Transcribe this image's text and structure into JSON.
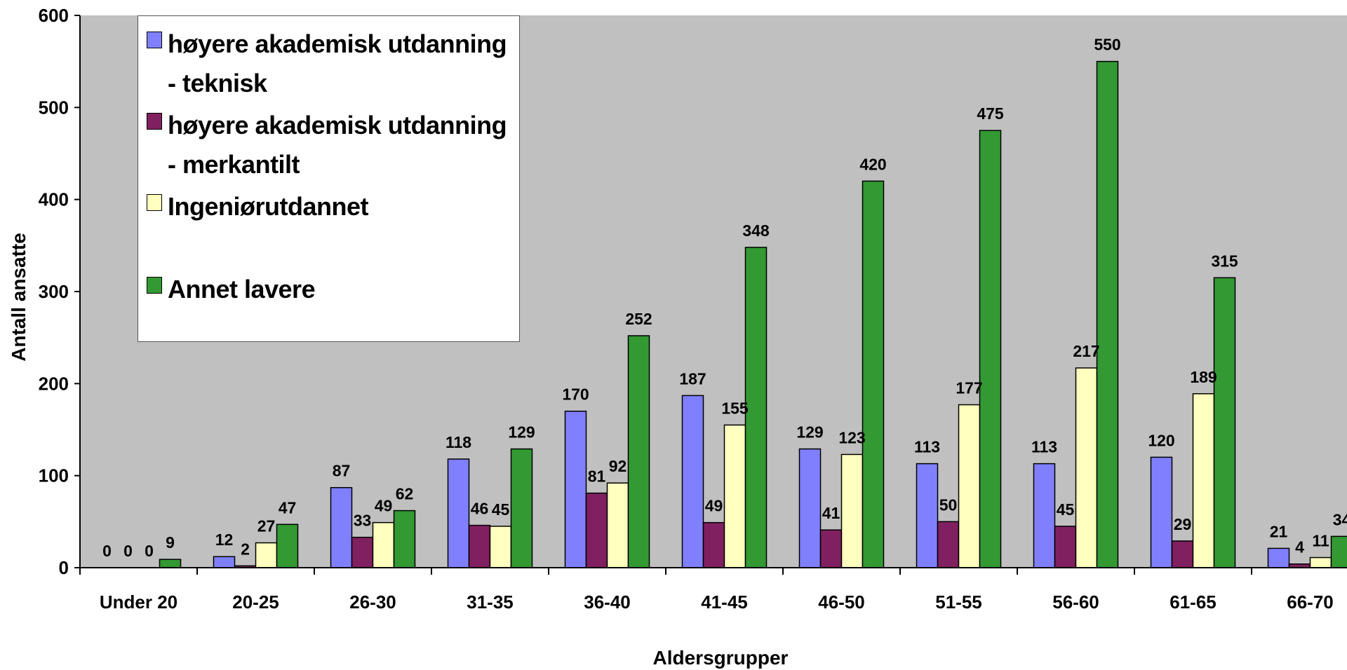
{
  "chart_data": {
    "type": "bar",
    "xlabel": "Aldersgrupper",
    "ylabel": "Antall ansatte",
    "ylim": [
      0,
      600
    ],
    "yticks": [
      0,
      100,
      200,
      300,
      400,
      500,
      600
    ],
    "grid": false,
    "legend_position": "top-left",
    "background": "#c0c0c0",
    "categories": [
      "Under 20",
      "20-25",
      "26-30",
      "31-35",
      "36-40",
      "41-45",
      "46-50",
      "51-55",
      "56-60",
      "61-65",
      "66-70"
    ],
    "series": [
      {
        "name": "høyere akademisk utdanning - teknisk",
        "color": "#8080ff",
        "values": [
          0,
          12,
          87,
          118,
          170,
          187,
          129,
          113,
          113,
          120,
          21
        ]
      },
      {
        "name": "høyere akademisk utdanning - merkantilt",
        "color": "#802060",
        "values": [
          0,
          2,
          33,
          46,
          81,
          49,
          41,
          50,
          45,
          29,
          4
        ]
      },
      {
        "name": "Ingeniørutdannet",
        "color": "#ffffc0",
        "values": [
          0,
          27,
          49,
          45,
          92,
          155,
          123,
          177,
          217,
          189,
          11
        ]
      },
      {
        "name": "Annet lavere",
        "color": "#339933",
        "values": [
          9,
          47,
          62,
          129,
          252,
          348,
          420,
          475,
          550,
          315,
          34
        ]
      }
    ]
  }
}
